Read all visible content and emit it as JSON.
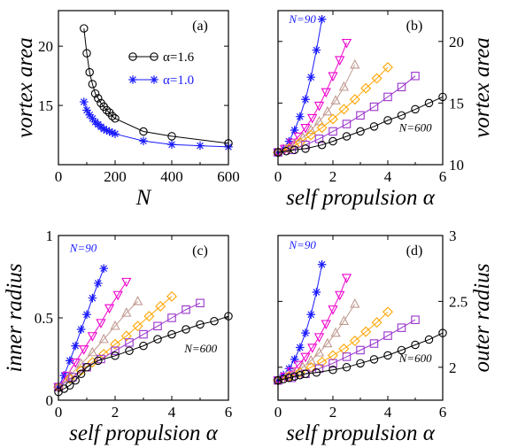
{
  "colors": {
    "N90": "#1a1aff",
    "N120": "#ee00cc",
    "N150": "#c09a90",
    "N200": "#ffa500",
    "N300": "#9933cc",
    "N600": "#000000"
  },
  "chart_data": [
    {
      "id": "a",
      "type": "line",
      "panel_label": "(a)",
      "xlabel": "N",
      "ylabel": "vortex area",
      "xlim": [
        0,
        600
      ],
      "ylim": [
        10,
        23
      ],
      "xticks": [
        0,
        200,
        400,
        600
      ],
      "yticks": [
        15,
        20
      ],
      "yaxis_side": "left",
      "legend": "top-right",
      "series": [
        {
          "name": "α=1.6",
          "color": "#000000",
          "marker": "circle",
          "x": [
            90,
            100,
            110,
            120,
            130,
            140,
            150,
            160,
            170,
            180,
            190,
            200,
            300,
            400,
            600
          ],
          "y": [
            21.5,
            19.4,
            17.8,
            16.8,
            16.0,
            15.6,
            15.2,
            14.9,
            14.6,
            14.4,
            14.1,
            13.9,
            12.8,
            12.4,
            11.8
          ]
        },
        {
          "name": "α=1.0",
          "color": "#1a1aff",
          "marker": "star",
          "x": [
            90,
            100,
            110,
            120,
            130,
            140,
            150,
            160,
            170,
            180,
            190,
            200,
            300,
            400,
            500,
            600
          ],
          "y": [
            15.3,
            14.6,
            14.2,
            13.9,
            13.6,
            13.4,
            13.2,
            13.0,
            12.9,
            12.8,
            12.7,
            12.6,
            12.0,
            11.7,
            11.6,
            11.5
          ]
        }
      ]
    },
    {
      "id": "b",
      "type": "line",
      "panel_label": "(b)",
      "xlabel": "self propulsion α",
      "ylabel": "vortex area",
      "xlim": [
        0,
        6
      ],
      "ylim": [
        10,
        22.5
      ],
      "xticks": [
        0,
        2,
        4,
        6
      ],
      "yticks": [
        10,
        15,
        20
      ],
      "yaxis_side": "right",
      "annotations": [
        {
          "text": "N=90",
          "color": "#1a1aff",
          "x": 0.4,
          "y": 21.5
        },
        {
          "text": "N=600",
          "color": "#000000",
          "x": 5.6,
          "y": 12.7
        }
      ],
      "series": [
        {
          "color": "#1a1aff",
          "marker": "star",
          "x": [
            0,
            0.2,
            0.4,
            0.6,
            0.8,
            1.0,
            1.2,
            1.4,
            1.6
          ],
          "y": [
            11.0,
            11.3,
            11.9,
            12.8,
            13.9,
            15.3,
            17.1,
            19.3,
            21.8
          ]
        },
        {
          "color": "#ee00cc",
          "marker": "triangle-down",
          "x": [
            0,
            0.25,
            0.5,
            0.75,
            1.0,
            1.25,
            1.5,
            1.75,
            2.0,
            2.25,
            2.5
          ],
          "y": [
            11.0,
            11.3,
            11.8,
            12.3,
            13.0,
            13.8,
            14.8,
            15.9,
            17.2,
            18.5,
            19.9
          ]
        },
        {
          "color": "#c09a90",
          "marker": "triangle-up",
          "x": [
            0,
            0.3,
            0.6,
            0.9,
            1.2,
            1.5,
            1.8,
            2.1,
            2.4,
            2.8
          ],
          "y": [
            11.0,
            11.3,
            11.7,
            12.2,
            12.8,
            13.5,
            14.3,
            15.2,
            16.3,
            18.1
          ]
        },
        {
          "color": "#ffa500",
          "marker": "diamond",
          "x": [
            0,
            0.4,
            0.8,
            1.2,
            1.6,
            2.0,
            2.4,
            2.8,
            3.2,
            3.6,
            4.0
          ],
          "y": [
            11.0,
            11.3,
            11.8,
            12.4,
            13.0,
            13.7,
            14.5,
            15.3,
            16.2,
            17.0,
            17.9
          ]
        },
        {
          "color": "#9933cc",
          "marker": "square",
          "x": [
            0,
            0.5,
            1.0,
            1.5,
            2.0,
            2.5,
            3.0,
            3.5,
            4.0,
            4.5,
            5.0
          ],
          "y": [
            11.0,
            11.2,
            11.6,
            12.1,
            12.7,
            13.3,
            14.0,
            14.7,
            15.5,
            16.3,
            17.2
          ]
        },
        {
          "color": "#000000",
          "marker": "circle",
          "x": [
            0,
            0.3,
            0.6,
            1.0,
            1.6,
            2.0,
            2.5,
            3.0,
            3.5,
            4.0,
            4.5,
            5.0,
            5.5,
            6.0
          ],
          "y": [
            11.0,
            11.1,
            11.2,
            11.3,
            11.6,
            11.9,
            12.3,
            12.7,
            13.1,
            13.6,
            14.0,
            14.5,
            15.0,
            15.5
          ]
        }
      ]
    },
    {
      "id": "c",
      "type": "line",
      "panel_label": "(c)",
      "xlabel": "self propulsion α",
      "ylabel": "inner radius",
      "xlim": [
        0,
        6
      ],
      "ylim": [
        0,
        1
      ],
      "xticks": [
        0,
        2,
        4,
        6
      ],
      "yticks": [
        0,
        0.5,
        1
      ],
      "yaxis_side": "left",
      "annotations": [
        {
          "text": "N=90",
          "color": "#1a1aff",
          "x": 0.4,
          "y": 0.9
        },
        {
          "text": "N=600",
          "color": "#000000",
          "x": 5.6,
          "y": 0.29
        }
      ],
      "series": [
        {
          "color": "#1a1aff",
          "marker": "star",
          "x": [
            0,
            0.2,
            0.4,
            0.6,
            0.8,
            1.0,
            1.2,
            1.4,
            1.6
          ],
          "y": [
            0.08,
            0.15,
            0.24,
            0.33,
            0.43,
            0.52,
            0.62,
            0.71,
            0.8
          ]
        },
        {
          "color": "#ee00cc",
          "marker": "triangle-down",
          "x": [
            0,
            0.3,
            0.6,
            0.9,
            1.2,
            1.5,
            1.8,
            2.1,
            2.4
          ],
          "y": [
            0.08,
            0.15,
            0.23,
            0.31,
            0.39,
            0.47,
            0.56,
            0.64,
            0.72
          ]
        },
        {
          "color": "#c09a90",
          "marker": "triangle-up",
          "x": [
            0,
            0.4,
            0.8,
            1.2,
            1.6,
            2.0,
            2.4,
            2.8
          ],
          "y": [
            0.08,
            0.15,
            0.22,
            0.29,
            0.37,
            0.45,
            0.53,
            0.6
          ]
        },
        {
          "color": "#ffa500",
          "marker": "diamond",
          "x": [
            0,
            0.4,
            0.8,
            1.2,
            1.6,
            2.0,
            2.4,
            2.8,
            3.2,
            3.6,
            4.0
          ],
          "y": [
            0.08,
            0.13,
            0.18,
            0.23,
            0.28,
            0.34,
            0.39,
            0.45,
            0.51,
            0.57,
            0.63
          ]
        },
        {
          "color": "#9933cc",
          "marker": "square",
          "x": [
            0,
            0.5,
            1.0,
            1.5,
            2.0,
            2.5,
            3.0,
            3.5,
            4.0,
            4.5,
            5.0
          ],
          "y": [
            0.08,
            0.14,
            0.2,
            0.25,
            0.3,
            0.35,
            0.4,
            0.45,
            0.5,
            0.55,
            0.59
          ]
        },
        {
          "color": "#000000",
          "marker": "circle",
          "x": [
            0,
            0.2,
            0.4,
            0.6,
            0.8,
            1.0,
            1.4,
            2.0,
            2.5,
            3.0,
            3.5,
            4.0,
            4.5,
            5.0,
            5.5,
            6.0
          ],
          "y": [
            0.05,
            0.07,
            0.09,
            0.12,
            0.16,
            0.2,
            0.24,
            0.27,
            0.3,
            0.33,
            0.37,
            0.4,
            0.43,
            0.46,
            0.48,
            0.51
          ]
        }
      ]
    },
    {
      "id": "d",
      "type": "line",
      "panel_label": "(d)",
      "xlabel": "self propulsion α",
      "ylabel": "outer radius",
      "xlim": [
        0,
        6
      ],
      "ylim": [
        1.75,
        3
      ],
      "xticks": [
        0,
        2,
        4,
        6
      ],
      "yticks": [
        2,
        2.5,
        3
      ],
      "yaxis_side": "right",
      "annotations": [
        {
          "text": "N=90",
          "color": "#1a1aff",
          "x": 0.4,
          "y": 2.9
        },
        {
          "text": "N=600",
          "color": "#000000",
          "x": 5.6,
          "y": 2.04
        }
      ],
      "series": [
        {
          "color": "#1a1aff",
          "marker": "star",
          "x": [
            0,
            0.2,
            0.4,
            0.6,
            0.8,
            1.0,
            1.2,
            1.4,
            1.6
          ],
          "y": [
            1.9,
            1.94,
            1.99,
            2.06,
            2.15,
            2.26,
            2.4,
            2.57,
            2.78
          ]
        },
        {
          "color": "#ee00cc",
          "marker": "triangle-down",
          "x": [
            0,
            0.25,
            0.5,
            0.75,
            1.0,
            1.25,
            1.5,
            1.75,
            2.0,
            2.25,
            2.5
          ],
          "y": [
            1.9,
            1.93,
            1.97,
            2.02,
            2.08,
            2.15,
            2.23,
            2.33,
            2.44,
            2.55,
            2.68
          ]
        },
        {
          "color": "#c09a90",
          "marker": "triangle-up",
          "x": [
            0,
            0.3,
            0.6,
            0.9,
            1.2,
            1.5,
            1.8,
            2.1,
            2.4,
            2.8
          ],
          "y": [
            1.9,
            1.93,
            1.96,
            2.0,
            2.05,
            2.11,
            2.18,
            2.26,
            2.35,
            2.48
          ]
        },
        {
          "color": "#ffa500",
          "marker": "diamond",
          "x": [
            0,
            0.4,
            0.8,
            1.2,
            1.6,
            2.0,
            2.4,
            2.8,
            3.2,
            3.6,
            4.0
          ],
          "y": [
            1.9,
            1.93,
            1.96,
            2.0,
            2.04,
            2.09,
            2.14,
            2.2,
            2.27,
            2.34,
            2.42
          ]
        },
        {
          "color": "#9933cc",
          "marker": "square",
          "x": [
            0,
            0.5,
            1.0,
            1.5,
            2.0,
            2.5,
            3.0,
            3.5,
            4.0,
            4.5,
            5.0
          ],
          "y": [
            1.9,
            1.92,
            1.95,
            1.99,
            2.03,
            2.08,
            2.13,
            2.18,
            2.24,
            2.3,
            2.36
          ]
        },
        {
          "color": "#000000",
          "marker": "circle",
          "x": [
            0,
            0.2,
            0.4,
            0.6,
            0.8,
            1.0,
            1.4,
            2.0,
            2.5,
            3.0,
            3.5,
            4.0,
            4.5,
            5.0,
            5.5,
            6.0
          ],
          "y": [
            1.9,
            1.91,
            1.92,
            1.93,
            1.94,
            1.95,
            1.96,
            1.98,
            2.0,
            2.03,
            2.06,
            2.09,
            2.13,
            2.17,
            2.21,
            2.26
          ]
        }
      ]
    }
  ]
}
